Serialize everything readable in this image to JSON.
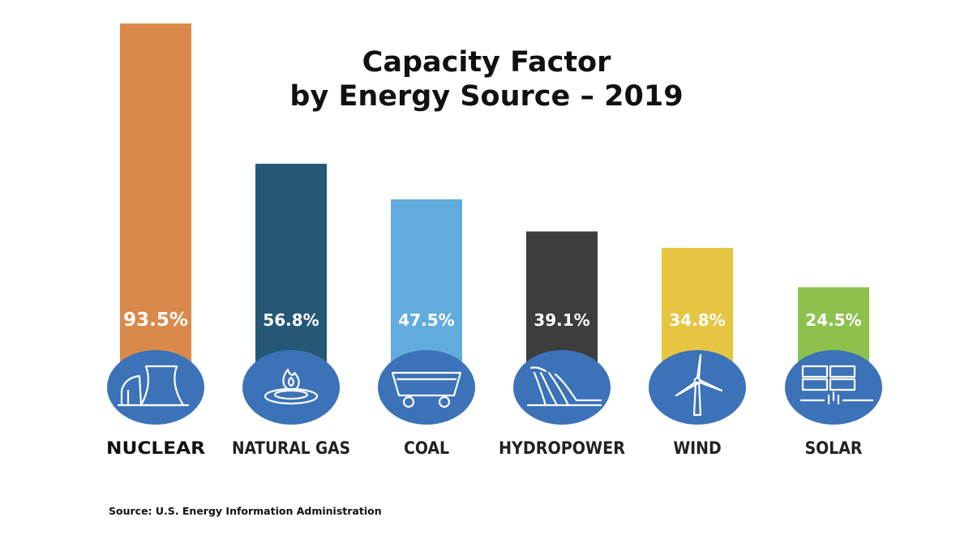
{
  "chart_data": {
    "type": "bar",
    "title_lines": [
      "Capacity Factor",
      "by Energy Source – 2019"
    ],
    "categories": [
      "NUCLEAR",
      "NATURAL GAS",
      "COAL",
      "HYDROPOWER",
      "WIND",
      "SOLAR"
    ],
    "values": [
      93.5,
      56.8,
      47.5,
      39.1,
      34.8,
      24.5
    ],
    "value_labels": [
      "93.5%",
      "56.8%",
      "47.5%",
      "39.1%",
      "34.8%",
      "24.5%"
    ],
    "unit": "%",
    "bar_colors": [
      "#D9894A",
      "#255877",
      "#62ACDD",
      "#3D3D3D",
      "#E6C540",
      "#8DC04D"
    ],
    "icons": [
      "cooling-tower-icon",
      "gas-flame-icon",
      "coal-cart-icon",
      "dam-icon",
      "wind-turbine-icon",
      "solar-panel-icon"
    ],
    "icon_circle_color": "#3C72B8",
    "ylim": [
      0,
      100
    ],
    "grid": false,
    "legend": "none"
  },
  "source": "Source: U.S. Energy Information Administration"
}
